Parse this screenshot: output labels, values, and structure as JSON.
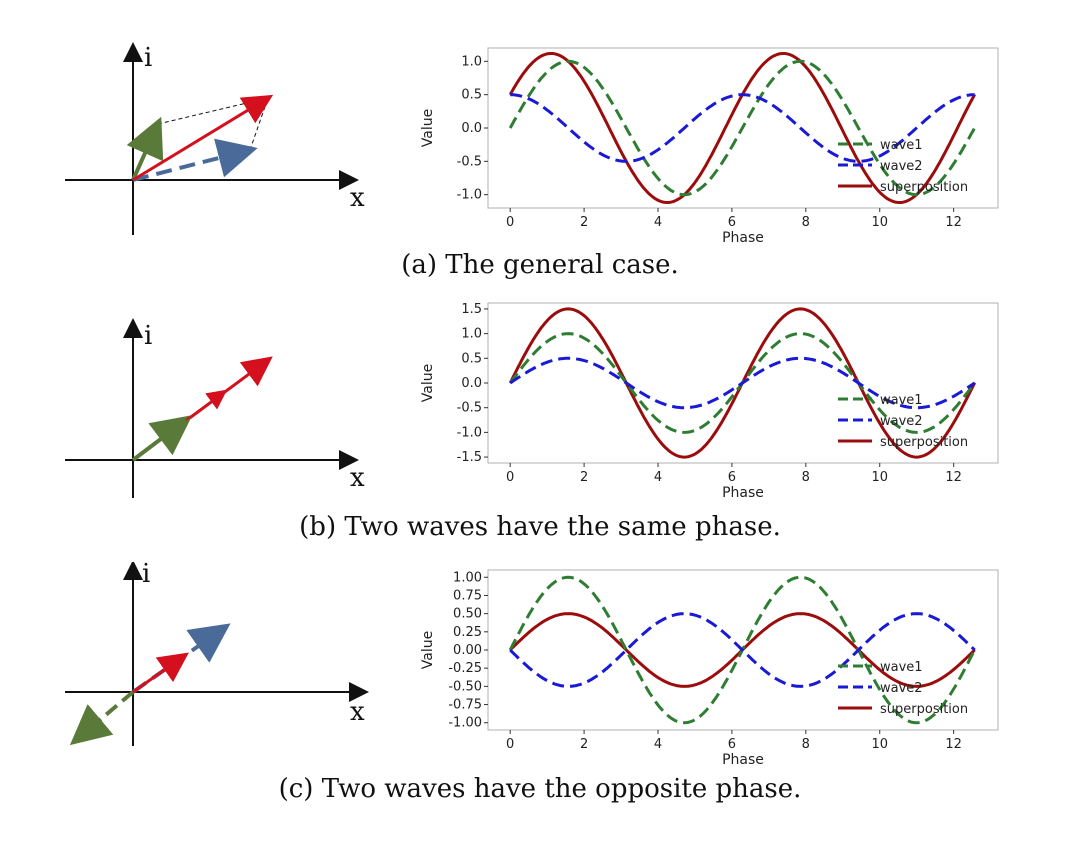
{
  "panels": [
    {
      "caption": "(a) The general case.",
      "vector_axes": {
        "x": "x",
        "y": "i"
      },
      "chart_data": {
        "type": "line",
        "title": "",
        "xlabel": "Phase",
        "ylabel": "Value",
        "xlim": [
          -0.6,
          13.2
        ],
        "ylim": [
          -1.2,
          1.2
        ],
        "xticks": [
          "0",
          "2",
          "4",
          "6",
          "8",
          "10",
          "12"
        ],
        "yticks": [
          "1.0",
          "0.5",
          "0.0",
          "-0.5",
          "-1.0"
        ],
        "legend_position": "lower-right",
        "series": [
          {
            "name": "wave1",
            "color": "#2e7d32",
            "dash": "dashed",
            "function": "sin",
            "amplitude": 1.0,
            "phase": 0.0
          },
          {
            "name": "wave2",
            "color": "#1a1ad6",
            "dash": "dashed",
            "function": "cos",
            "amplitude": 0.5,
            "phase": 0.0
          },
          {
            "name": "superposition",
            "color": "#9b0d0d",
            "dash": "solid",
            "function": "sum"
          }
        ],
        "x_range": [
          0,
          12.57
        ]
      },
      "vectors": [
        {
          "name": "wave1-vector",
          "color": "#5a7a3a",
          "dash": "solid"
        },
        {
          "name": "wave2-vector",
          "color": "#4a6b9a",
          "dash": "dashed"
        },
        {
          "name": "superposition-vector",
          "color": "#d4101e",
          "dash": "solid"
        }
      ]
    },
    {
      "caption": "(b) Two waves have the same phase.",
      "vector_axes": {
        "x": "x",
        "y": "i"
      },
      "chart_data": {
        "type": "line",
        "title": "",
        "xlabel": "Phase",
        "ylabel": "Value",
        "xlim": [
          -0.6,
          13.2
        ],
        "ylim": [
          -1.62,
          1.62
        ],
        "xticks": [
          "0",
          "2",
          "4",
          "6",
          "8",
          "10",
          "12"
        ],
        "yticks": [
          "1.5",
          "1.0",
          "0.5",
          "0.0",
          "-0.5",
          "-1.0",
          "-1.5"
        ],
        "legend_position": "lower-right",
        "series": [
          {
            "name": "wave1",
            "color": "#2e7d32",
            "dash": "dashed",
            "function": "sin",
            "amplitude": 1.0,
            "phase": 0.0
          },
          {
            "name": "wave2",
            "color": "#1a1ad6",
            "dash": "dashed",
            "function": "sin",
            "amplitude": 0.5,
            "phase": 0.0
          },
          {
            "name": "superposition",
            "color": "#9b0d0d",
            "dash": "solid",
            "function": "sum"
          }
        ],
        "x_range": [
          0,
          12.57
        ]
      }
    },
    {
      "caption": "(c) Two waves have the opposite phase.",
      "vector_axes": {
        "x": "x",
        "y": "i"
      },
      "chart_data": {
        "type": "line",
        "title": "",
        "xlabel": "Phase",
        "ylabel": "Value",
        "xlim": [
          -0.6,
          13.2
        ],
        "ylim": [
          -1.1,
          1.1
        ],
        "xticks": [
          "0",
          "2",
          "4",
          "6",
          "8",
          "10",
          "12"
        ],
        "yticks": [
          "1.00",
          "0.75",
          "0.50",
          "0.25",
          "0.00",
          "-0.25",
          "-0.50",
          "-0.75",
          "-1.00"
        ],
        "legend_position": "lower-right",
        "series": [
          {
            "name": "wave1",
            "color": "#2e7d32",
            "dash": "dashed",
            "function": "sin",
            "amplitude": 1.0,
            "phase": 0.0
          },
          {
            "name": "wave2",
            "color": "#1a1ad6",
            "dash": "dashed",
            "function": "sin",
            "amplitude": -0.5,
            "phase": 0.0
          },
          {
            "name": "superposition",
            "color": "#9b0d0d",
            "dash": "solid",
            "function": "sum"
          }
        ],
        "x_range": [
          0,
          12.57
        ]
      }
    }
  ]
}
